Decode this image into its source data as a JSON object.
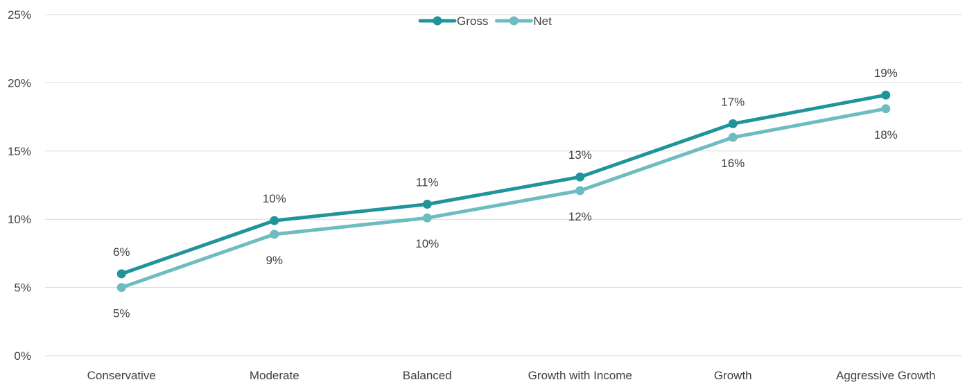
{
  "chart_data": {
    "type": "line",
    "title": "",
    "xlabel": "",
    "ylabel": "",
    "categories": [
      "Conservative",
      "Moderate",
      "Balanced",
      "Growth with Income",
      "Growth",
      "Aggressive Growth"
    ],
    "series": [
      {
        "name": "Gross",
        "color": "#1f9499",
        "values": [
          6.0,
          9.9,
          11.1,
          13.1,
          17.0,
          19.1
        ],
        "labels": [
          "6%",
          "10%",
          "11%",
          "13%",
          "17%",
          "19%"
        ]
      },
      {
        "name": "Net",
        "color": "#6dbcc0",
        "values": [
          5.0,
          8.9,
          10.1,
          12.1,
          16.0,
          18.1
        ],
        "labels": [
          "5%",
          "9%",
          "10%",
          "12%",
          "16%",
          "18%"
        ]
      }
    ],
    "ylim": [
      0,
      25
    ],
    "yticks": [
      0,
      5,
      10,
      15,
      20,
      25
    ],
    "ytick_labels": [
      "0%",
      "5%",
      "10%",
      "15%",
      "20%",
      "25%"
    ],
    "grid": true,
    "legend": "top-center"
  }
}
